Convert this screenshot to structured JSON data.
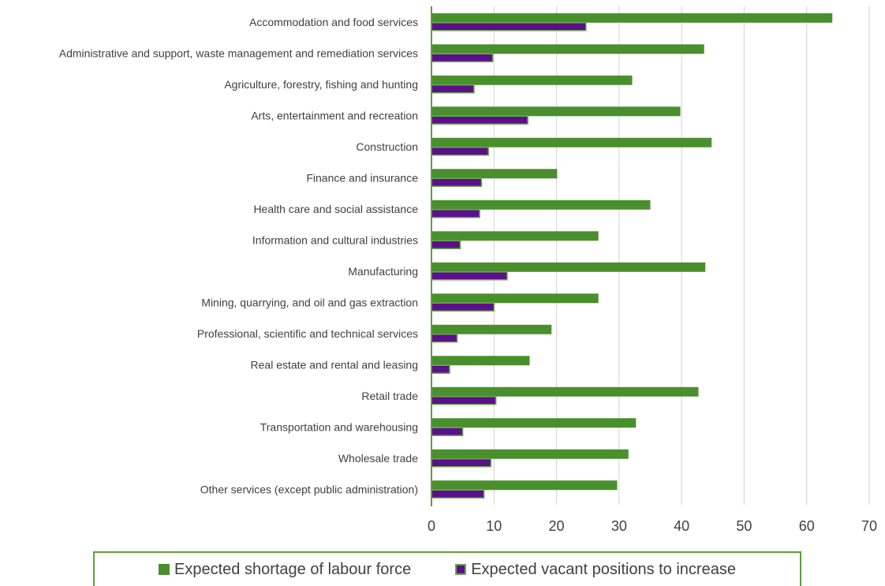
{
  "chart_data": {
    "type": "bar",
    "orientation": "horizontal",
    "title": "",
    "xlabel": "",
    "ylabel": "",
    "xlim": [
      0,
      70
    ],
    "x_ticks": [
      0,
      10,
      20,
      30,
      40,
      50,
      60,
      70
    ],
    "grid": "vertical",
    "legend_position": "bottom",
    "categories": [
      "Accommodation and food services",
      "Administrative and support, waste management and remediation services",
      "Agriculture, forestry, fishing and hunting",
      "Arts, entertainment and recreation",
      "Construction",
      "Finance and insurance",
      "Health care and social assistance",
      "Information and cultural industries",
      "Manufacturing",
      "Mining, quarrying, and oil and gas extraction",
      "Professional, scientific and technical services",
      "Real estate and rental and leasing",
      "Retail trade",
      "Transportation and warehousing",
      "Wholesale trade",
      "Other services (except public administration)"
    ],
    "series": [
      {
        "name": "Expected shortage of labour force",
        "color": "#4a8f2e",
        "values": [
          64.1,
          43.6,
          32.1,
          39.8,
          44.8,
          20.1,
          35.0,
          26.7,
          43.8,
          26.7,
          19.2,
          15.7,
          42.7,
          32.7,
          31.5,
          29.7
        ]
      },
      {
        "name": "Expected vacant positions to increase",
        "color": "#5b0f8a",
        "edge_color": "#6aa84f",
        "values": [
          24.7,
          9.8,
          6.8,
          15.4,
          9.1,
          8.0,
          7.7,
          4.6,
          12.1,
          10.0,
          4.1,
          2.9,
          10.3,
          5.0,
          9.5,
          8.4
        ]
      }
    ]
  }
}
